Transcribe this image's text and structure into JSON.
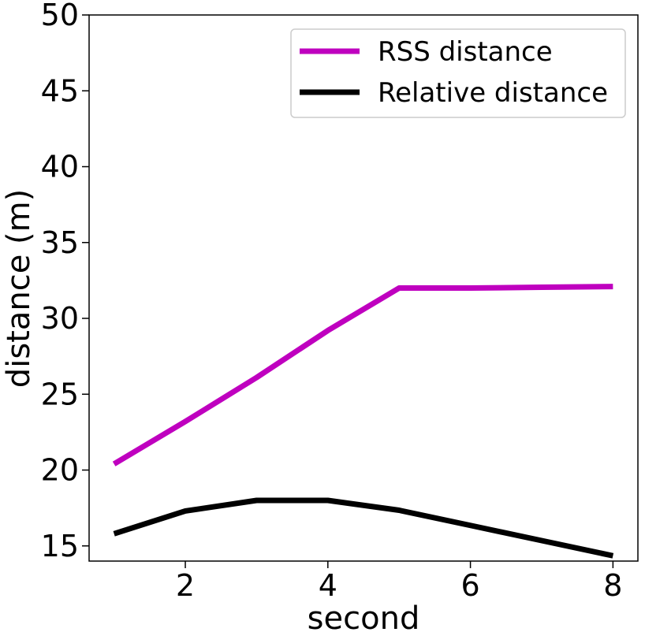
{
  "chart_data": {
    "type": "line",
    "xlabel": "second",
    "ylabel": "distance (m)",
    "xlim": [
      0.65,
      8.35
    ],
    "ylim": [
      14,
      50
    ],
    "xticks": [
      2,
      4,
      6,
      8
    ],
    "yticks": [
      15,
      20,
      25,
      30,
      35,
      40,
      45,
      50
    ],
    "xtick_labels": [
      "2",
      "4",
      "6",
      "8"
    ],
    "ytick_labels": [
      "15",
      "20",
      "25",
      "30",
      "35",
      "40",
      "45",
      "50"
    ],
    "grid": false,
    "legend": {
      "position": "top-right"
    },
    "series": [
      {
        "name": "RSS distance",
        "color": "#bf00bf",
        "x": [
          1,
          2,
          3,
          4,
          5,
          6,
          7,
          8
        ],
        "y": [
          20.4,
          23.2,
          26.1,
          29.2,
          32.0,
          32.0,
          32.05,
          32.1
        ]
      },
      {
        "name": "Relative distance",
        "color": "#000000",
        "x": [
          1,
          2,
          3,
          4,
          5,
          6,
          7,
          8
        ],
        "y": [
          15.8,
          17.3,
          18.0,
          18.0,
          17.35,
          16.35,
          15.35,
          14.35
        ]
      }
    ]
  }
}
